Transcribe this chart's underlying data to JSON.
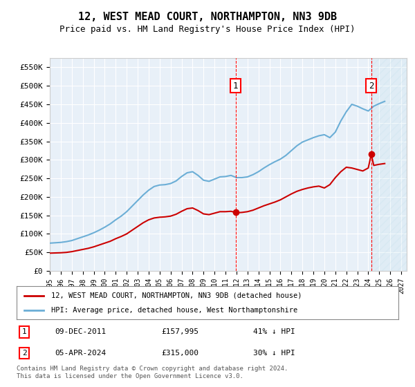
{
  "title": "12, WEST MEAD COURT, NORTHAMPTON, NN3 9DB",
  "subtitle": "Price paid vs. HM Land Registry's House Price Index (HPI)",
  "ylabel_values": [
    "£0",
    "£50K",
    "£100K",
    "£150K",
    "£200K",
    "£250K",
    "£300K",
    "£350K",
    "£400K",
    "£450K",
    "£500K",
    "£550K"
  ],
  "ylim": [
    0,
    575000
  ],
  "yticks": [
    0,
    50000,
    100000,
    150000,
    200000,
    250000,
    300000,
    350000,
    400000,
    450000,
    500000,
    550000
  ],
  "xlim_start": 1995.0,
  "xlim_end": 2027.5,
  "hpi_color": "#6baed6",
  "price_color": "#cc0000",
  "background_color": "#e8f0f8",
  "grid_color": "#ffffff",
  "transaction1_x": 2011.92,
  "transaction1_y": 157995,
  "transaction1_label": "09-DEC-2011",
  "transaction1_price": "£157,995",
  "transaction1_hpi": "41% ↓ HPI",
  "transaction2_x": 2024.27,
  "transaction2_y": 315000,
  "transaction2_label": "05-APR-2024",
  "transaction2_price": "£315,000",
  "transaction2_hpi": "30% ↓ HPI",
  "legend_line1": "12, WEST MEAD COURT, NORTHAMPTON, NN3 9DB (detached house)",
  "legend_line2": "HPI: Average price, detached house, West Northamptonshire",
  "footer1": "Contains HM Land Registry data © Crown copyright and database right 2024.",
  "footer2": "This data is licensed under the Open Government Licence v3.0.",
  "hpi_data_x": [
    1995,
    1995.5,
    1996,
    1996.5,
    1997,
    1997.5,
    1998,
    1998.5,
    1999,
    1999.5,
    2000,
    2000.5,
    2001,
    2001.5,
    2002,
    2002.5,
    2003,
    2003.5,
    2004,
    2004.5,
    2005,
    2005.5,
    2006,
    2006.5,
    2007,
    2007.5,
    2008,
    2008.5,
    2009,
    2009.5,
    2010,
    2010.5,
    2011,
    2011.5,
    2012,
    2012.5,
    2013,
    2013.5,
    2014,
    2014.5,
    2015,
    2015.5,
    2016,
    2016.5,
    2017,
    2017.5,
    2018,
    2018.5,
    2019,
    2019.5,
    2020,
    2020.5,
    2021,
    2021.5,
    2022,
    2022.5,
    2023,
    2023.5,
    2024,
    2024.5,
    2025,
    2025.5
  ],
  "hpi_data_y": [
    75000,
    76000,
    77000,
    79000,
    82000,
    87000,
    92000,
    97000,
    103000,
    110000,
    118000,
    127000,
    138000,
    148000,
    160000,
    175000,
    190000,
    205000,
    218000,
    228000,
    232000,
    233000,
    236000,
    243000,
    255000,
    265000,
    268000,
    258000,
    245000,
    242000,
    248000,
    254000,
    255000,
    258000,
    252000,
    252000,
    254000,
    260000,
    268000,
    278000,
    287000,
    295000,
    302000,
    312000,
    325000,
    338000,
    348000,
    354000,
    360000,
    365000,
    368000,
    360000,
    375000,
    405000,
    430000,
    450000,
    445000,
    438000,
    432000,
    445000,
    452000,
    458000
  ],
  "price_data_x": [
    1995,
    1995.5,
    1996,
    1996.5,
    1997,
    1997.5,
    1998,
    1998.5,
    1999,
    1999.5,
    2000,
    2000.5,
    2001,
    2001.5,
    2002,
    2002.5,
    2003,
    2003.5,
    2004,
    2004.5,
    2005,
    2005.5,
    2006,
    2006.5,
    2007,
    2007.5,
    2008,
    2008.5,
    2009,
    2009.5,
    2010,
    2010.5,
    2011,
    2011.5,
    2011.92,
    2012,
    2012.5,
    2013,
    2013.5,
    2014,
    2014.5,
    2015,
    2015.5,
    2016,
    2016.5,
    2017,
    2017.5,
    2018,
    2018.5,
    2019,
    2019.5,
    2020,
    2020.5,
    2021,
    2021.5,
    2022,
    2022.5,
    2023,
    2023.5,
    2024,
    2024.27,
    2024.5,
    2025,
    2025.5
  ],
  "price_data_y": [
    48000,
    48500,
    49000,
    50000,
    52000,
    55000,
    58000,
    61000,
    65000,
    70000,
    75000,
    80000,
    87000,
    93000,
    100000,
    110000,
    120000,
    130000,
    138000,
    143000,
    145000,
    146000,
    148000,
    153000,
    161000,
    168000,
    170000,
    163000,
    154000,
    152000,
    156000,
    160000,
    160000,
    161000,
    157995,
    157000,
    158000,
    160000,
    164000,
    170000,
    176000,
    181000,
    186000,
    192000,
    200000,
    208000,
    215000,
    220000,
    224000,
    227000,
    229000,
    224000,
    233000,
    252000,
    268000,
    280000,
    278000,
    274000,
    270000,
    278000,
    315000,
    285000,
    288000,
    290000
  ]
}
